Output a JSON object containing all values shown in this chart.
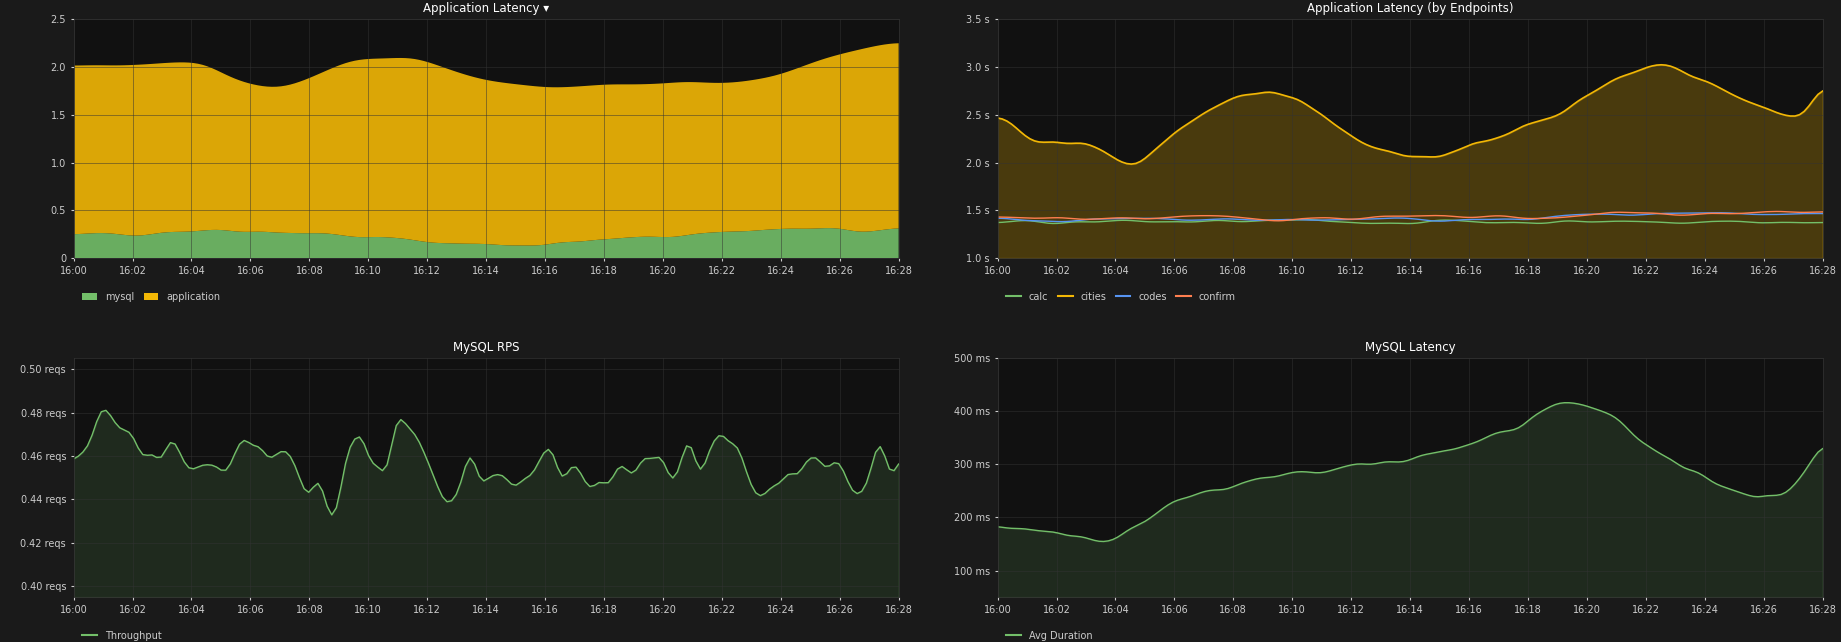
{
  "bg_color": "#1a1a1a",
  "panel_bg": "#1a1a1a",
  "plot_bg": "#111111",
  "grid_color": "#333333",
  "text_color": "#cccccc",
  "title_color": "#ffffff",
  "time_labels_top": [
    "16:00",
    "16:02",
    "16:04",
    "16:06",
    "16:08",
    "16:10",
    "16:12",
    "16:14",
    "16:16",
    "16:18",
    "16:20",
    "16:22",
    "16:24",
    "16:26",
    "16:28"
  ],
  "time_labels_bot": [
    "16:00",
    "16:02",
    "16:04",
    "16:06",
    "16:08",
    "16:10",
    "16:12",
    "16:14",
    "16:16",
    "16:18",
    "16:20",
    "16:22",
    "16:24",
    "16:26",
    "16:28"
  ],
  "panel1_title": "Application Latency ▾",
  "panel1_ylim": [
    0,
    2.5
  ],
  "panel1_yticks": [
    0,
    0.5,
    1.0,
    1.5,
    2.0,
    2.5
  ],
  "panel1_mysql_color": "#73bf69",
  "panel1_app_color": "#f2b705",
  "panel1_mysql_alpha": 0.85,
  "panel1_app_alpha": 0.85,
  "panel2_title": "Application Latency (by Endpoints)",
  "panel2_ylim": [
    1.0,
    3.5
  ],
  "panel2_yticks": [
    1.0,
    1.5,
    2.0,
    2.5,
    3.0,
    3.5
  ],
  "panel2_ytick_labels": [
    "1.0 s",
    "1.5 s",
    "2.0 s",
    "2.5 s",
    "3.0 s",
    "3.5 s"
  ],
  "panel2_calc_color": "#73bf69",
  "panel2_cities_color": "#f2b705",
  "panel2_codes_color": "#5794f2",
  "panel2_confirm_color": "#ff7f50",
  "panel3_title": "MySQL RPS",
  "panel3_ylim": [
    0.395,
    0.505
  ],
  "panel3_yticks": [
    0.4,
    0.42,
    0.44,
    0.46,
    0.48,
    0.5
  ],
  "panel3_ytick_labels": [
    "0.40 reqs",
    "0.42 reqs",
    "0.44 reqs",
    "0.46 reqs",
    "0.48 reqs",
    "0.50 reqs"
  ],
  "panel3_color": "#73bf69",
  "panel4_title": "MySQL Latency",
  "panel4_ylim": [
    50,
    500
  ],
  "panel4_yticks": [
    100,
    200,
    300,
    400,
    500
  ],
  "panel4_ytick_labels": [
    "100 ms",
    "200 ms",
    "300 ms",
    "400 ms",
    "500 ms"
  ],
  "panel4_color": "#73bf69"
}
